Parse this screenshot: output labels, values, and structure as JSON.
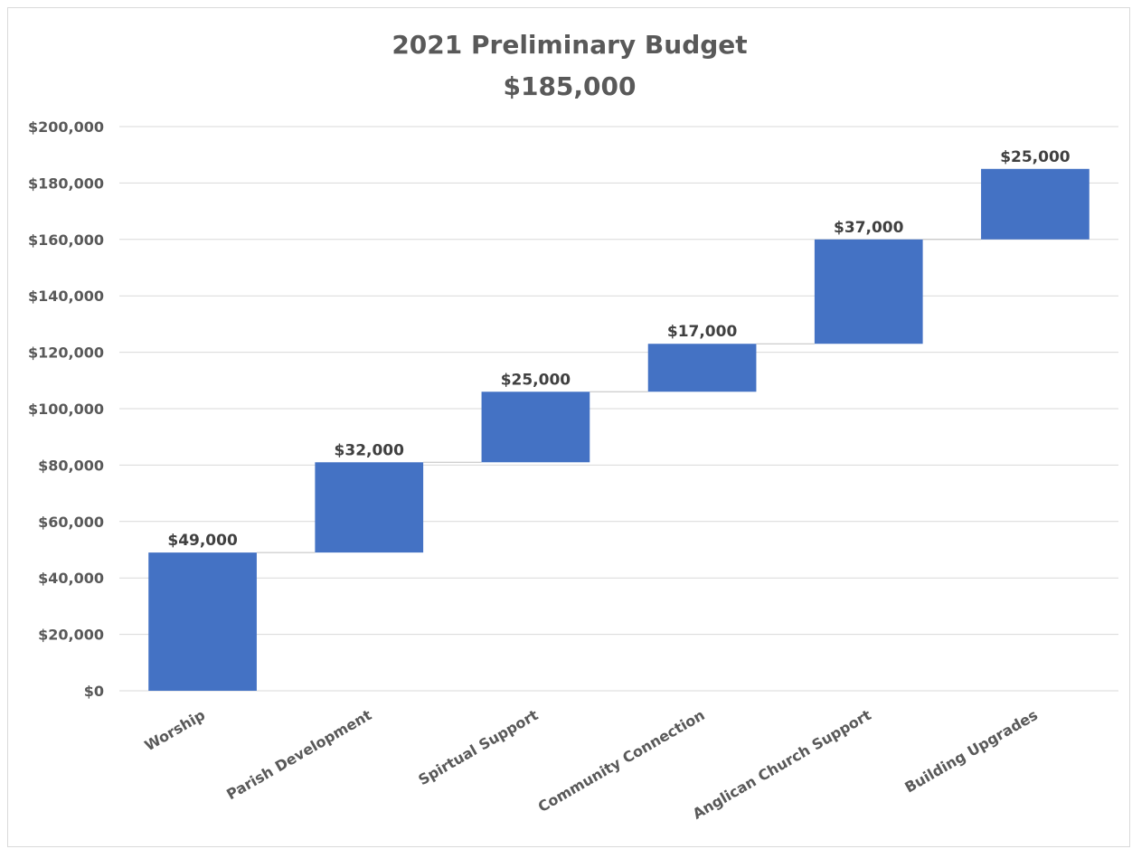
{
  "chart_data": {
    "type": "bar",
    "subtype": "waterfall",
    "title": "2021 Preliminary Budget",
    "subtitle": "$185,000",
    "categories": [
      "Worship",
      "Parish Development",
      "Spirtual Support",
      "Community Connection",
      "Anglican Church Support",
      "Building Upgrades"
    ],
    "values": [
      49000,
      32000,
      25000,
      17000,
      37000,
      25000
    ],
    "data_labels": [
      "$49,000",
      "$32,000",
      "$25,000",
      "$17,000",
      "$37,000",
      "$25,000"
    ],
    "y_ticks": [
      "$0",
      "$20,000",
      "$40,000",
      "$60,000",
      "$80,000",
      "$100,000",
      "$120,000",
      "$140,000",
      "$160,000",
      "$180,000",
      "$200,000"
    ],
    "ylim": [
      0,
      200000
    ],
    "grid": true,
    "bar_color": "#4472c4",
    "grid_color": "#d9d9d9",
    "connector_color": "#bfbfbf"
  }
}
